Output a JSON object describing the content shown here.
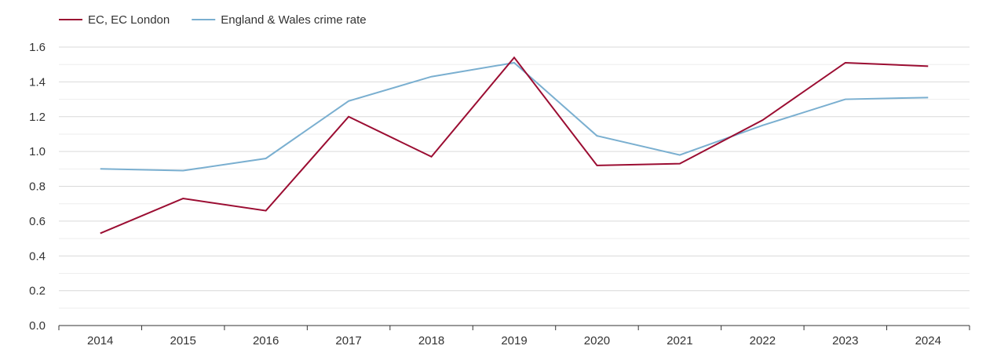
{
  "chart_data": {
    "type": "line",
    "x": [
      "2014",
      "2015",
      "2016",
      "2017",
      "2018",
      "2019",
      "2020",
      "2021",
      "2022",
      "2023",
      "2024"
    ],
    "series": [
      {
        "name": "EC, EC London",
        "color": "#9b0d32",
        "values": [
          0.53,
          0.73,
          0.66,
          1.2,
          0.97,
          1.54,
          0.92,
          0.93,
          1.18,
          1.51,
          1.49
        ]
      },
      {
        "name": "England & Wales crime rate",
        "color": "#7aafd0",
        "values": [
          0.9,
          0.89,
          0.96,
          1.29,
          1.43,
          1.51,
          1.09,
          0.98,
          1.15,
          1.3,
          1.31
        ]
      }
    ],
    "ylim": [
      0,
      1.6
    ],
    "yticks": [
      "0.0",
      "0.2",
      "0.4",
      "0.6",
      "0.8",
      "1.0",
      "1.2",
      "1.4",
      "1.6"
    ],
    "grid": true,
    "legend_position": "top-left",
    "title": "",
    "xlabel": "",
    "ylabel": ""
  }
}
